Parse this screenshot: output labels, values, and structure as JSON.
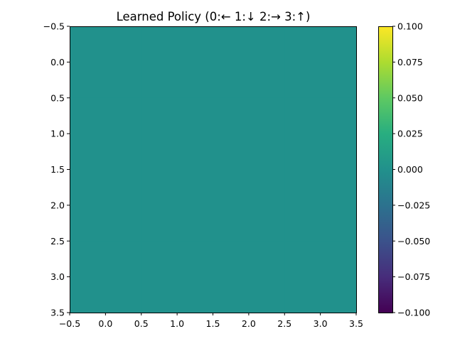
{
  "chart_data": {
    "type": "heatmap",
    "title": "Learned Policy (0:← 1:↓ 2:→ 3:↑)",
    "xlabel": "",
    "ylabel": "",
    "xlim": [
      -0.5,
      3.5
    ],
    "ylim": [
      3.5,
      -0.5
    ],
    "x_ticks": [
      -0.5,
      0.0,
      0.5,
      1.0,
      1.5,
      2.0,
      2.5,
      3.0,
      3.5
    ],
    "x_tick_labels": [
      "−0.5",
      "0.0",
      "0.5",
      "1.0",
      "1.5",
      "2.0",
      "2.5",
      "3.0",
      "3.5"
    ],
    "y_ticks": [
      -0.5,
      0.0,
      0.5,
      1.0,
      1.5,
      2.0,
      2.5,
      3.0,
      3.5
    ],
    "y_tick_labels": [
      "−0.5",
      "0.0",
      "0.5",
      "1.0",
      "1.5",
      "2.0",
      "2.5",
      "3.0",
      "3.5"
    ],
    "values": [
      [
        0,
        0,
        0,
        0
      ],
      [
        0,
        0,
        0,
        0
      ],
      [
        0,
        0,
        0,
        0
      ],
      [
        0,
        0,
        0,
        0
      ]
    ],
    "colormap": "viridis",
    "cell_color": "#21918c",
    "colorbar": {
      "vmin": -0.1,
      "vmax": 0.1,
      "ticks": [
        -0.1,
        -0.075,
        -0.05,
        -0.025,
        0.0,
        0.025,
        0.05,
        0.075,
        0.1
      ],
      "tick_labels": [
        "−0.100",
        "−0.075",
        "−0.050",
        "−0.025",
        "0.000",
        "0.025",
        "0.050",
        "0.075",
        "0.100"
      ]
    },
    "grid": false
  }
}
